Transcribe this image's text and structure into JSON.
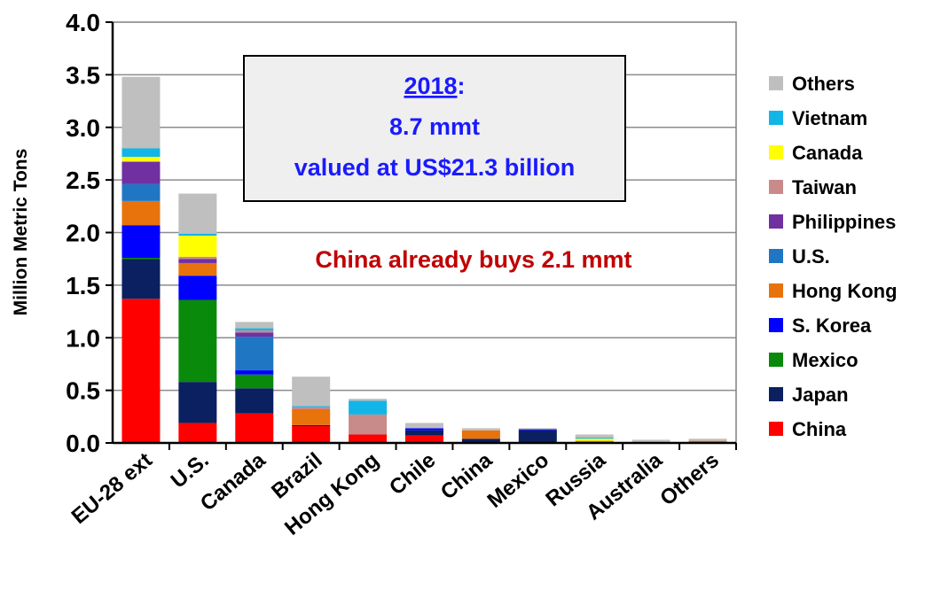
{
  "chart_data": {
    "type": "bar",
    "stacked": true,
    "ylabel": "Million Metric Tons",
    "xlabel": "",
    "ylim": [
      0,
      4
    ],
    "yticks": [
      "0.0",
      "0.5",
      "1.0",
      "1.5",
      "2.0",
      "2.5",
      "3.0",
      "3.5",
      "4.0"
    ],
    "grid": true,
    "legend_position": "right",
    "categories": [
      "EU-28 ext",
      "U.S.",
      "Canada",
      "Brazil",
      "Hong Kong",
      "Chile",
      "China",
      "Mexico",
      "Russia",
      "Australia",
      "Others"
    ],
    "series": [
      {
        "name": "China",
        "color": "#ff0000",
        "values": [
          1.37,
          0.19,
          0.28,
          0.16,
          0.08,
          0.07,
          0.0,
          0.0,
          0.0,
          0.0,
          0.0
        ]
      },
      {
        "name": "Japan",
        "color": "#0a2060",
        "values": [
          0.38,
          0.39,
          0.24,
          0.01,
          0.0,
          0.05,
          0.04,
          0.12,
          0.0,
          0.0,
          0.0
        ]
      },
      {
        "name": "Mexico",
        "color": "#0a8a0a",
        "values": [
          0.01,
          0.78,
          0.13,
          0.0,
          0.0,
          0.0,
          0.0,
          0.0,
          0.0,
          0.0,
          0.0
        ]
      },
      {
        "name": "S. Korea",
        "color": "#0000ff",
        "values": [
          0.31,
          0.23,
          0.04,
          0.0,
          0.0,
          0.02,
          0.0,
          0.01,
          0.0,
          0.0,
          0.0
        ]
      },
      {
        "name": "Hong Kong",
        "color": "#e8720c",
        "values": [
          0.23,
          0.12,
          0.0,
          0.15,
          0.0,
          0.0,
          0.08,
          0.0,
          0.02,
          0.0,
          0.02
        ]
      },
      {
        "name": "U.S.",
        "color": "#1f77c4",
        "values": [
          0.16,
          0.0,
          0.32,
          0.0,
          0.0,
          0.0,
          0.0,
          0.0,
          0.0,
          0.0,
          0.0
        ]
      },
      {
        "name": "Philippines",
        "color": "#7030a0",
        "values": [
          0.21,
          0.04,
          0.04,
          0.0,
          0.0,
          0.0,
          0.0,
          0.0,
          0.0,
          0.0,
          0.0
        ]
      },
      {
        "name": "Taiwan",
        "color": "#c98a8a",
        "values": [
          0.01,
          0.02,
          0.02,
          0.02,
          0.19,
          0.0,
          0.0,
          0.0,
          0.0,
          0.0,
          0.0
        ]
      },
      {
        "name": "Canada",
        "color": "#ffff00",
        "values": [
          0.04,
          0.2,
          0.0,
          0.0,
          0.0,
          0.0,
          0.0,
          0.0,
          0.02,
          0.0,
          0.0
        ]
      },
      {
        "name": "Vietnam",
        "color": "#12b5e8",
        "values": [
          0.08,
          0.02,
          0.02,
          0.01,
          0.13,
          0.0,
          0.0,
          0.0,
          0.01,
          0.0,
          0.0
        ]
      },
      {
        "name": "Others",
        "color": "#bfbfbf",
        "values": [
          0.68,
          0.38,
          0.06,
          0.28,
          0.02,
          0.05,
          0.02,
          0.01,
          0.03,
          0.03,
          0.02
        ]
      }
    ],
    "annotations": {
      "box_year": "2018",
      "box_year_suffix": ":",
      "box_line2": "8.7 mmt",
      "box_line3": "valued at US$21.3  billion",
      "note": "China already buys 2.1 mmt"
    }
  }
}
